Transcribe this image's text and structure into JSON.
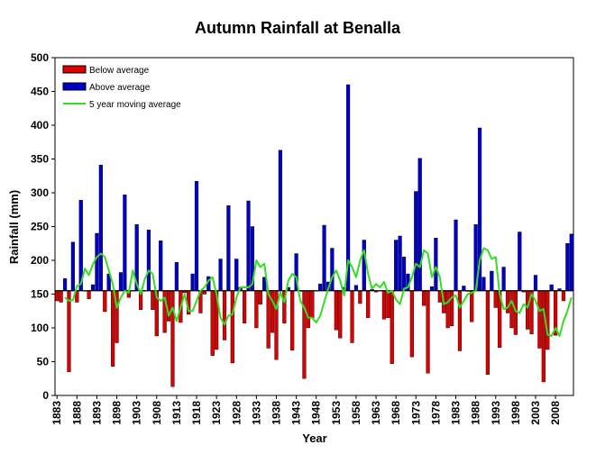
{
  "chart_data": {
    "type": "bar",
    "title": "Autumn Rainfall at Benalla",
    "xlabel": "Year",
    "ylabel": "Rainfall (mm)",
    "ylim": [
      0,
      500
    ],
    "y_ticks": [
      0,
      50,
      100,
      150,
      200,
      250,
      300,
      350,
      400,
      450,
      500
    ],
    "x_tick_labels": [
      "1883",
      "1888",
      "1893",
      "1898",
      "1903",
      "1908",
      "1913",
      "1918",
      "1923",
      "1928",
      "1933",
      "1938",
      "1943",
      "1948",
      "1953",
      "1958",
      "1963",
      "1968",
      "1973",
      "1978",
      "1983",
      "1988",
      "1993",
      "1998",
      "2003",
      "2008"
    ],
    "first_year": 1883,
    "average": 155,
    "legend": {
      "placement": "top-left",
      "below_label": "Below average",
      "above_label": "Above average",
      "moving_label": "5 year moving average"
    },
    "colors": {
      "below": "#dd0000",
      "above": "#0000cc",
      "moving": "#33dd22",
      "average_line": "#000000"
    },
    "series": [
      {
        "name": "Autumn rainfall",
        "values": [
          140,
          138,
          173,
          35,
          227,
          138,
          289,
          155,
          143,
          164,
          240,
          341,
          124,
          180,
          43,
          78,
          182,
          297,
          145,
          155,
          253,
          127,
          155,
          245,
          127,
          88,
          229,
          93,
          110,
          13,
          197,
          108,
          152,
          120,
          180,
          317,
          122,
          150,
          176,
          59,
          68,
          202,
          82,
          281,
          48,
          202,
          160,
          107,
          288,
          250,
          100,
          135,
          175,
          70,
          93,
          53,
          363,
          107,
          160,
          67,
          210,
          154,
          25,
          100,
          115,
          155,
          165,
          252,
          168,
          218,
          97,
          85,
          160,
          460,
          78,
          163,
          136,
          230,
          115,
          157,
          153,
          155,
          113,
          115,
          47,
          230,
          236,
          205,
          180,
          57,
          302,
          351,
          133,
          33,
          161,
          233,
          138,
          122,
          100,
          103,
          260,
          66,
          162,
          154,
          109,
          253,
          396,
          175,
          31,
          184,
          130,
          71,
          190,
          122,
          100,
          90,
          242,
          153,
          98,
          91,
          178,
          70,
          20,
          68,
          164,
          89,
          158,
          140,
          225,
          239
        ]
      },
      {
        "name": "5 year moving average",
        "values": [
          145,
          140,
          141,
          162,
          165,
          188,
          178,
          194,
          205,
          210,
          205,
          185,
          165,
          130,
          145,
          155,
          152,
          185,
          165,
          150,
          172,
          185,
          180,
          145,
          140,
          145,
          118,
          130,
          110,
          130,
          150,
          125,
          125,
          140,
          155,
          160,
          170,
          175,
          150,
          115,
          105,
          118,
          120,
          145,
          160,
          160,
          160,
          165,
          200,
          190,
          195,
          150,
          140,
          128,
          153,
          138,
          170,
          180,
          175,
          140,
          130,
          115,
          115,
          108,
          118,
          138,
          158,
          175,
          185,
          170,
          148,
          200,
          190,
          175,
          200,
          215,
          180,
          158,
          165,
          160,
          168,
          152,
          155,
          142,
          135,
          158,
          160,
          175,
          195,
          190,
          215,
          210,
          175,
          190,
          175,
          135,
          138,
          145,
          148,
          130,
          140,
          150,
          152,
          155,
          200,
          218,
          215,
          202,
          205,
          150,
          128,
          130,
          140,
          125,
          122,
          135,
          130,
          150,
          140,
          125,
          128,
          90,
          88,
          100,
          88,
          110,
          125,
          145
        ]
      }
    ]
  }
}
